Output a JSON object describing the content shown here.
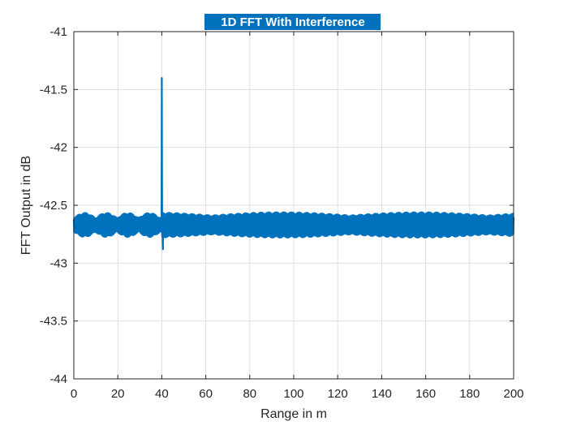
{
  "chart_data": {
    "type": "line",
    "title": "1D FFT With Interference",
    "xlabel": "Range in m",
    "ylabel": "FFT Output in dB",
    "xlim": [
      0,
      200
    ],
    "ylim": [
      -44,
      -41
    ],
    "xticks": [
      0,
      20,
      40,
      60,
      80,
      100,
      120,
      140,
      160,
      180,
      200
    ],
    "yticks": [
      -44,
      -43.5,
      -43,
      -42.5,
      -42,
      -41.5,
      -41
    ],
    "xtick_labels": [
      "0",
      "20",
      "40",
      "60",
      "80",
      "100",
      "120",
      "140",
      "160",
      "180",
      "200"
    ],
    "ytick_labels": [
      "-44",
      "-43.5",
      "-43",
      "-42.5",
      "-42",
      "-41.5",
      "-41"
    ],
    "grid": true,
    "series": [
      {
        "color": "#0072BD",
        "baseline": -42.67,
        "oscillation_band": [
          -42.78,
          -42.56
        ],
        "peak": {
          "x": 40,
          "y": -41.4
        },
        "dip": {
          "x": 40.5,
          "y": -42.88
        }
      }
    ],
    "title_background": "#0072BD"
  }
}
